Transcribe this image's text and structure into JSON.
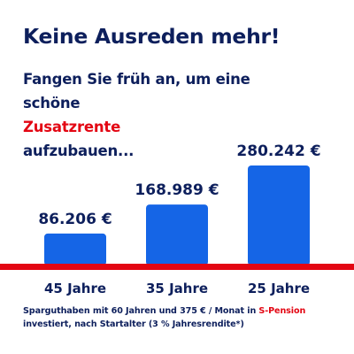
{
  "headline": "Keine Ausreden mehr!",
  "subtitle": {
    "line1": "Fangen Sie früh an, um eine",
    "line2_pre": "schöne ",
    "line2_accent": "Zusatzrente",
    "line3": "aufzubauen..."
  },
  "footnote": {
    "line1_pre": "Sparguthaben mit 60 Jahren und 375 € / Monat in ",
    "line1_accent": "S-Pension",
    "line2": "investiert, nach Startalter (3 % Jahresrendite*)"
  },
  "colors": {
    "navy": "#0d1f5c",
    "bar": "#1565e6",
    "baseline": "#e30613",
    "accent": "#e30613"
  },
  "chart_data": {
    "type": "bar",
    "categories": [
      "45 Jahre",
      "35 Jahre",
      "25 Jahre"
    ],
    "values": [
      86206,
      168989,
      280242
    ],
    "value_labels": [
      "86.206 €",
      "168.989 €",
      "280.242 €"
    ],
    "xlabel": "",
    "ylabel": "",
    "grid": false
  }
}
